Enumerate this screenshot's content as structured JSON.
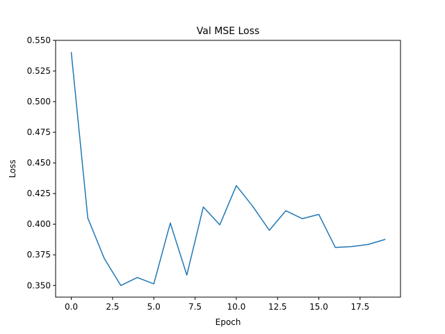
{
  "chart_data": {
    "type": "line",
    "title": "Val MSE Loss",
    "xlabel": "Epoch",
    "ylabel": "Loss",
    "xlim": [
      -0.95,
      19.95
    ],
    "ylim": [
      0.3405,
      0.55
    ],
    "xticks": [
      0.0,
      2.5,
      5.0,
      7.5,
      10.0,
      12.5,
      15.0,
      17.5
    ],
    "xtick_labels": [
      "0.0",
      "2.5",
      "5.0",
      "7.5",
      "10.0",
      "12.5",
      "15.0",
      "17.5"
    ],
    "yticks": [
      0.35,
      0.375,
      0.4,
      0.425,
      0.45,
      0.475,
      0.5,
      0.525,
      0.55
    ],
    "ytick_labels": [
      "0.350",
      "0.375",
      "0.400",
      "0.425",
      "0.450",
      "0.475",
      "0.500",
      "0.525",
      "0.550"
    ],
    "grid": false,
    "series": [
      {
        "color": "#1f77b4",
        "x": [
          0,
          1,
          2,
          3,
          4,
          5,
          6,
          7,
          8,
          9,
          10,
          11,
          12,
          13,
          14,
          15,
          16,
          17,
          18,
          19
        ],
        "values": [
          0.54,
          0.405,
          0.372,
          0.35,
          0.3565,
          0.3513,
          0.401,
          0.3585,
          0.414,
          0.3995,
          0.4315,
          0.4145,
          0.395,
          0.411,
          0.4045,
          0.408,
          0.381,
          0.3817,
          0.3835,
          0.3875
        ]
      }
    ]
  }
}
